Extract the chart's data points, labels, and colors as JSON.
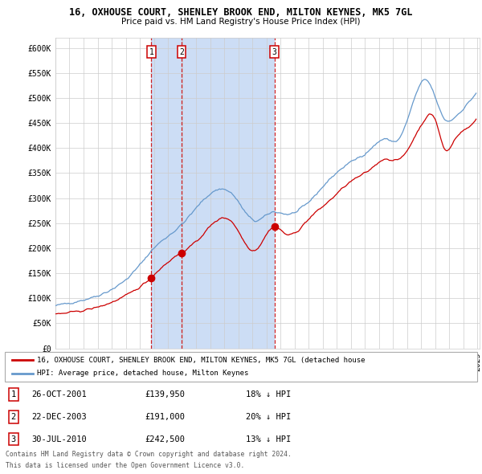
{
  "title1": "16, OXHOUSE COURT, SHENLEY BROOK END, MILTON KEYNES, MK5 7GL",
  "title2": "Price paid vs. HM Land Registry's House Price Index (HPI)",
  "legend1": "16, OXHOUSE COURT, SHENLEY BROOK END, MILTON KEYNES, MK5 7GL (detached house",
  "legend2": "HPI: Average price, detached house, Milton Keynes",
  "ylabel_ticks": [
    "£0",
    "£50K",
    "£100K",
    "£150K",
    "£200K",
    "£250K",
    "£300K",
    "£350K",
    "£400K",
    "£450K",
    "£500K",
    "£550K",
    "£600K"
  ],
  "ytick_values": [
    0,
    50000,
    100000,
    150000,
    200000,
    250000,
    300000,
    350000,
    400000,
    450000,
    500000,
    550000,
    600000
  ],
  "sale_dates": [
    "2001-10-26",
    "2003-12-22",
    "2010-07-30"
  ],
  "sale_prices": [
    139950,
    191000,
    242500
  ],
  "sale_labels": [
    "1",
    "2",
    "3"
  ],
  "footer1": "Contains HM Land Registry data © Crown copyright and database right 2024.",
  "footer2": "This data is licensed under the Open Government Licence v3.0.",
  "table_rows": [
    [
      "1",
      "26-OCT-2001",
      "£139,950",
      "18% ↓ HPI"
    ],
    [
      "2",
      "22-DEC-2003",
      "£191,000",
      "20% ↓ HPI"
    ],
    [
      "3",
      "30-JUL-2010",
      "£242,500",
      "13% ↓ HPI"
    ]
  ],
  "hpi_color": "#6699cc",
  "red_color": "#cc0000",
  "shade_color": "#ccddf5",
  "grid_color": "#cccccc",
  "bg_color": "#ffffff"
}
